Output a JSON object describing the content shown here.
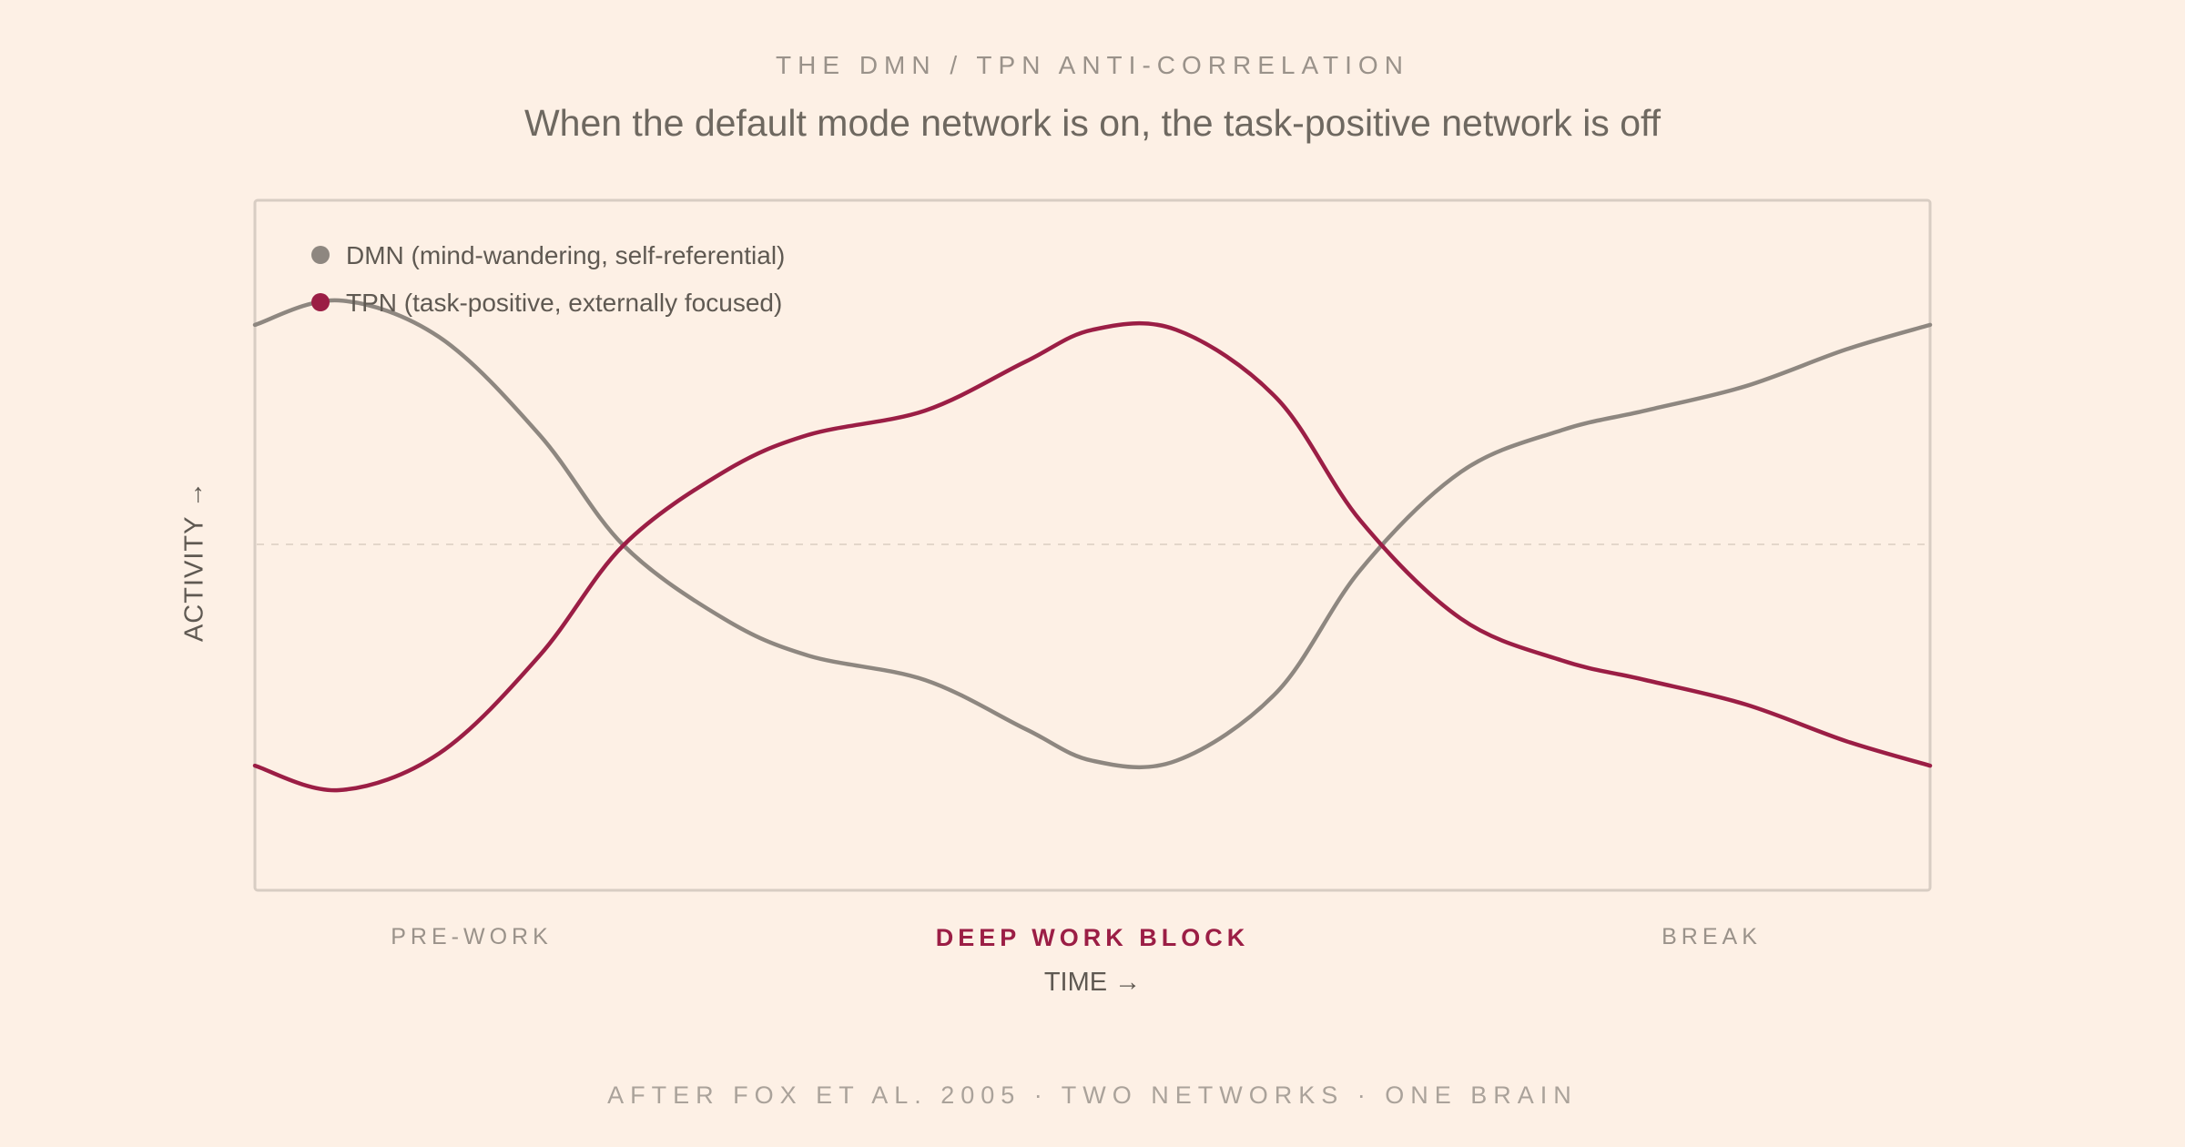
{
  "header": {
    "kicker": "THE DMN / TPN ANTI-CORRELATION",
    "headline": "When the default mode network is on, the task-positive network is off"
  },
  "footer": "AFTER FOX ET AL. 2005 · TWO NETWORKS · ONE BRAIN",
  "chart_data": {
    "type": "line",
    "title": "When the default mode network is on, the task-positive network is off",
    "xlabel": "TIME →",
    "ylabel": "ACTIVITY →",
    "ylim": [
      -1,
      1
    ],
    "xlim": [
      0,
      1
    ],
    "reference_line": 0,
    "grid": false,
    "legend_placement": "top-left",
    "phases": [
      {
        "label": "PRE-WORK",
        "highlight": false
      },
      {
        "label": "DEEP WORK BLOCK",
        "highlight": true
      },
      {
        "label": "BREAK",
        "highlight": false
      }
    ],
    "x": [
      0,
      0.05,
      0.11,
      0.17,
      0.22,
      0.28,
      0.33,
      0.4,
      0.46,
      0.5,
      0.55,
      0.61,
      0.66,
      0.72,
      0.78,
      0.83,
      0.89,
      0.95,
      1.0
    ],
    "series": [
      {
        "name": "DMN (mind-wandering, self-referential)",
        "color": "#8e8780",
        "values": [
          0.9,
          1.0,
          0.85,
          0.45,
          0.0,
          -0.3,
          -0.45,
          -0.55,
          -0.75,
          -0.88,
          -0.88,
          -0.6,
          -0.1,
          0.3,
          0.47,
          0.55,
          0.65,
          0.8,
          0.9
        ]
      },
      {
        "name": "TPN (task-positive, externally focused)",
        "color": "#9b1e45",
        "values": [
          -0.9,
          -1.0,
          -0.85,
          -0.45,
          0.0,
          0.3,
          0.45,
          0.55,
          0.75,
          0.88,
          0.88,
          0.6,
          0.1,
          -0.3,
          -0.47,
          -0.55,
          -0.65,
          -0.8,
          -0.9
        ]
      }
    ]
  }
}
